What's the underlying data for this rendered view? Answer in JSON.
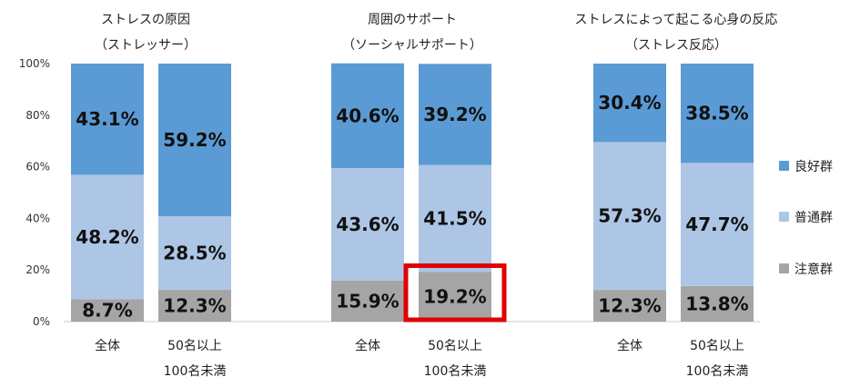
{
  "chart_data": {
    "type": "bar",
    "stacked": true,
    "ylim": [
      0,
      100
    ],
    "yticks": [
      "0%",
      "20%",
      "40%",
      "60%",
      "80%",
      "100%"
    ],
    "grid": false,
    "legend_position": "right",
    "colors": {
      "good": "#5B9BD5",
      "normal": "#ADC6E6",
      "caution": "#A5A5A5",
      "highlight": "#E00000"
    },
    "legend": [
      "良好群",
      "普通群",
      "注意群"
    ],
    "groups": [
      {
        "title_line1": "ストレスの原因",
        "title_line2": "（ストレッサー）",
        "bars": [
          {
            "label_line1": "全体",
            "label_line2": "",
            "caution": 8.7,
            "normal": 48.2,
            "good": 43.1,
            "labels": {
              "caution": "8.7%",
              "normal": "48.2%",
              "good": "43.1%"
            }
          },
          {
            "label_line1": "50名以上",
            "label_line2": "100名未満",
            "caution": 12.3,
            "normal": 28.5,
            "good": 59.2,
            "labels": {
              "caution": "12.3%",
              "normal": "28.5%",
              "good": "59.2%"
            }
          }
        ]
      },
      {
        "title_line1": "周囲のサポート",
        "title_line2": "（ソーシャルサポート）",
        "bars": [
          {
            "label_line1": "全体",
            "label_line2": "",
            "caution": 15.9,
            "normal": 43.6,
            "good": 40.6,
            "labels": {
              "caution": "15.9%",
              "normal": "43.6%",
              "good": "40.6%"
            }
          },
          {
            "label_line1": "50名以上",
            "label_line2": "100名未満",
            "caution": 19.2,
            "normal": 41.5,
            "good": 39.2,
            "highlight": "caution",
            "labels": {
              "caution": "19.2%",
              "normal": "41.5%",
              "good": "39.2%"
            }
          }
        ]
      },
      {
        "title_line1": "ストレスによって起こる心身の反応",
        "title_line2": "（ストレス反応）",
        "bars": [
          {
            "label_line1": "全体",
            "label_line2": "",
            "caution": 12.3,
            "normal": 57.3,
            "good": 30.4,
            "labels": {
              "caution": "12.3%",
              "normal": "57.3%",
              "good": "30.4%"
            }
          },
          {
            "label_line1": "50名以上",
            "label_line2": "100名未満",
            "caution": 13.8,
            "normal": 47.7,
            "good": 38.5,
            "labels": {
              "caution": "13.8%",
              "normal": "47.7%",
              "good": "38.5%"
            }
          }
        ]
      }
    ]
  }
}
